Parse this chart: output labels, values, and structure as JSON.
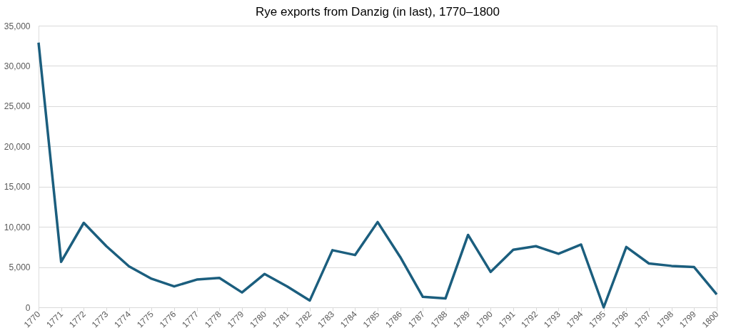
{
  "chart_data": {
    "type": "line",
    "title": "Rye exports from Danzig (in last), 1770–1800",
    "categories": [
      "1770",
      "1771",
      "1772",
      "1773",
      "1774",
      "1775",
      "1776",
      "1777",
      "1778",
      "1779",
      "1780",
      "1781",
      "1782",
      "1783",
      "1784",
      "1785",
      "1786",
      "1787",
      "1788",
      "1789",
      "1790",
      "1791",
      "1792",
      "1793",
      "1794",
      "1795",
      "1796",
      "1797",
      "1798",
      "1799",
      "1800"
    ],
    "series": [
      {
        "color": "#1b5e7e",
        "values": [
          32900,
          5650,
          10500,
          7600,
          5100,
          3550,
          2600,
          3450,
          3650,
          1850,
          4150,
          2600,
          850,
          7100,
          6500,
          10600,
          6250,
          1300,
          1100,
          9000,
          4400,
          7150,
          7600,
          6650,
          7800,
          0,
          7500,
          5450,
          5150,
          5000,
          1600
        ]
      }
    ],
    "ylim": [
      0,
      35000
    ],
    "yticks": [
      {
        "value": 0,
        "label": "0"
      },
      {
        "value": 5000,
        "label": "5,000"
      },
      {
        "value": 10000,
        "label": "10,000"
      },
      {
        "value": 15000,
        "label": "15,000"
      },
      {
        "value": 20000,
        "label": "20,000"
      },
      {
        "value": 25000,
        "label": "25,000"
      },
      {
        "value": 30000,
        "label": "30,000"
      },
      {
        "value": 35000,
        "label": "35,000"
      }
    ],
    "grid": "y",
    "marker": "none",
    "line_style": "solid",
    "legend": false
  }
}
